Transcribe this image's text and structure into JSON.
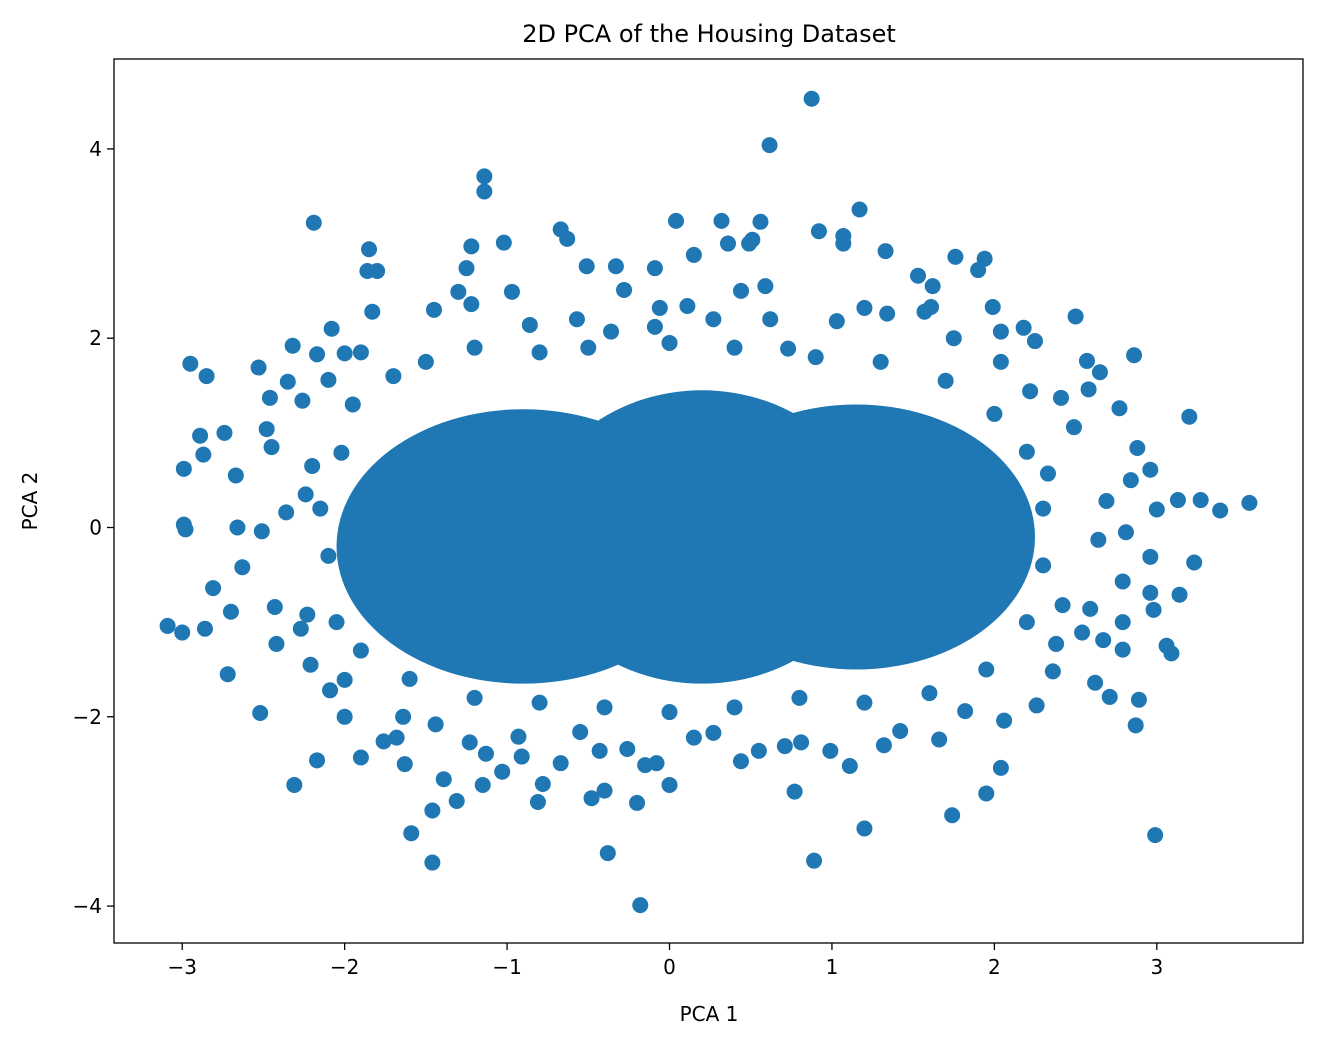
{
  "chart_data": {
    "type": "scatter",
    "title": "2D PCA of the Housing Dataset",
    "xlabel": "PCA 1",
    "ylabel": "PCA 2",
    "xlim": [
      -3.42,
      3.9
    ],
    "ylim": [
      -4.39,
      4.95
    ],
    "xticks": [
      -3,
      -2,
      -1,
      0,
      1,
      2,
      3
    ],
    "xtick_labels": [
      "−3",
      "−2",
      "−1",
      "0",
      "1",
      "2",
      "3"
    ],
    "yticks": [
      -4,
      -2,
      0,
      2,
      4
    ],
    "ytick_labels": [
      "−4",
      "−2",
      "0",
      "2",
      "4"
    ],
    "grid": false,
    "marker_color": "#1f77b4",
    "dense_core_regions": [
      {
        "cx": -0.9,
        "cy": -0.2,
        "rx": 1.15,
        "ry": 1.45
      },
      {
        "cx": 0.2,
        "cy": -0.1,
        "rx": 1.05,
        "ry": 1.55
      },
      {
        "cx": 1.15,
        "cy": -0.1,
        "rx": 1.1,
        "ry": 1.4
      }
    ],
    "points": [
      [
        0.875,
        4.53
      ],
      [
        0.616,
        4.04
      ],
      [
        -1.14,
        3.71
      ],
      [
        -1.14,
        3.55
      ],
      [
        -2.19,
        3.22
      ],
      [
        1.17,
        3.36
      ],
      [
        0.04,
        3.24
      ],
      [
        0.56,
        3.23
      ],
      [
        0.32,
        3.24
      ],
      [
        0.92,
        3.13
      ],
      [
        -0.67,
        3.15
      ],
      [
        -0.63,
        3.05
      ],
      [
        -1.02,
        3.01
      ],
      [
        -1.22,
        2.97
      ],
      [
        -1.85,
        2.94
      ],
      [
        1.33,
        2.92
      ],
      [
        1.07,
        3.08
      ],
      [
        1.07,
        3.0
      ],
      [
        0.36,
        3.0
      ],
      [
        0.49,
        3.0
      ],
      [
        0.51,
        3.04
      ],
      [
        1.76,
        2.86
      ],
      [
        1.94,
        2.84
      ],
      [
        1.9,
        2.72
      ],
      [
        -1.86,
        2.71
      ],
      [
        -1.8,
        2.71
      ],
      [
        -1.25,
        2.74
      ],
      [
        -0.09,
        2.74
      ],
      [
        0.15,
        2.88
      ],
      [
        -0.51,
        2.76
      ],
      [
        -0.33,
        2.76
      ],
      [
        1.53,
        2.66
      ],
      [
        1.62,
        2.55
      ],
      [
        0.59,
        2.55
      ],
      [
        2.5,
        2.23
      ],
      [
        2.86,
        1.82
      ],
      [
        3.2,
        1.17
      ],
      [
        -2.95,
        1.73
      ],
      [
        -2.85,
        1.6
      ],
      [
        -2.53,
        1.69
      ],
      [
        -2.89,
        0.97
      ],
      [
        -2.87,
        0.77
      ],
      [
        -2.74,
        1.0
      ],
      [
        -2.99,
        0.62
      ],
      [
        -2.99,
        0.03
      ],
      [
        -2.98,
        -0.02
      ],
      [
        -3.09,
        -1.04
      ],
      [
        -3.0,
        -1.11
      ],
      [
        -2.86,
        -1.07
      ],
      [
        -2.72,
        -1.55
      ],
      [
        -2.52,
        -1.96
      ],
      [
        -2.31,
        -2.72
      ],
      [
        -2.17,
        -2.46
      ],
      [
        -1.9,
        -2.43
      ],
      [
        -1.59,
        -3.23
      ],
      [
        -1.46,
        -3.54
      ],
      [
        -1.46,
        -2.99
      ],
      [
        -1.31,
        -2.89
      ],
      [
        -1.39,
        -2.66
      ],
      [
        -1.15,
        -2.72
      ],
      [
        -1.03,
        -2.58
      ],
      [
        -0.91,
        -2.42
      ],
      [
        -0.81,
        -2.9
      ],
      [
        -0.78,
        -2.71
      ],
      [
        -0.48,
        -2.86
      ],
      [
        -0.38,
        -3.44
      ],
      [
        -0.4,
        -2.78
      ],
      [
        -0.2,
        -2.91
      ],
      [
        -0.18,
        -3.99
      ],
      [
        0.0,
        -2.72
      ],
      [
        -0.15,
        -2.51
      ],
      [
        -0.08,
        -2.49
      ],
      [
        0.44,
        -2.47
      ],
      [
        0.55,
        -2.36
      ],
      [
        0.77,
        -2.79
      ],
      [
        0.89,
        -3.52
      ],
      [
        1.2,
        -3.18
      ],
      [
        1.74,
        -3.04
      ],
      [
        1.95,
        -2.81
      ],
      [
        2.04,
        -2.54
      ],
      [
        2.99,
        -3.25
      ],
      [
        2.87,
        -2.09
      ],
      [
        2.89,
        -1.82
      ],
      [
        3.06,
        -1.25
      ],
      [
        3.09,
        -1.33
      ],
      [
        3.14,
        -0.71
      ],
      [
        2.98,
        -0.87
      ],
      [
        2.96,
        -0.69
      ],
      [
        2.96,
        -0.31
      ],
      [
        3.0,
        0.19
      ],
      [
        3.13,
        0.29
      ],
      [
        3.27,
        0.29
      ],
      [
        3.39,
        0.18
      ],
      [
        3.57,
        0.26
      ],
      [
        3.23,
        -0.37
      ],
      [
        2.96,
        0.61
      ],
      [
        2.88,
        0.84
      ],
      [
        2.77,
        1.26
      ],
      [
        2.65,
        1.64
      ],
      [
        2.57,
        1.76
      ],
      [
        2.58,
        1.46
      ],
      [
        2.54,
        -1.11
      ],
      [
        2.67,
        -1.19
      ],
      [
        2.62,
        -1.64
      ],
      [
        2.71,
        -1.79
      ],
      [
        2.38,
        -1.23
      ],
      [
        2.36,
        -1.52
      ],
      [
        2.26,
        -1.88
      ],
      [
        2.79,
        -1.29
      ],
      [
        2.79,
        -1.0
      ],
      [
        2.59,
        -0.86
      ],
      [
        2.79,
        -0.57
      ],
      [
        2.81,
        -0.05
      ],
      [
        2.64,
        -0.13
      ],
      [
        2.84,
        0.5
      ],
      [
        2.69,
        0.28
      ],
      [
        -2.63,
        -0.42
      ],
      [
        -2.81,
        -0.64
      ],
      [
        -2.7,
        -0.89
      ],
      [
        -2.43,
        -0.84
      ],
      [
        -2.42,
        -1.23
      ],
      [
        -2.66,
        0.0
      ],
      [
        -2.67,
        0.55
      ],
      [
        -2.51,
        -0.04
      ],
      [
        -2.45,
        0.85
      ],
      [
        -2.46,
        1.37
      ],
      [
        -2.35,
        1.54
      ],
      [
        -2.32,
        1.92
      ],
      [
        -2.08,
        2.1
      ],
      [
        -2.26,
        1.34
      ],
      [
        -2.48,
        1.04
      ],
      [
        -2.36,
        0.16
      ],
      [
        -2.17,
        1.83
      ],
      [
        -2.1,
        1.56
      ],
      [
        -2.02,
        0.79
      ],
      [
        -2.24,
        0.35
      ],
      [
        -2.2,
        0.65
      ],
      [
        -2.23,
        -0.92
      ],
      [
        -2.27,
        -1.07
      ],
      [
        -2.21,
        -1.45
      ],
      [
        -2.0,
        -1.61
      ],
      [
        -2.09,
        -1.72
      ],
      [
        -2.0,
        -2.0
      ],
      [
        -1.76,
        -2.26
      ],
      [
        -1.63,
        -2.5
      ],
      [
        -1.68,
        -2.22
      ],
      [
        -1.64,
        -2.0
      ],
      [
        -1.44,
        -2.08
      ],
      [
        -1.23,
        -2.27
      ],
      [
        -1.13,
        -2.39
      ],
      [
        -0.93,
        -2.21
      ],
      [
        -0.67,
        -2.49
      ],
      [
        -0.55,
        -2.16
      ],
      [
        -0.43,
        -2.36
      ],
      [
        -0.26,
        -2.34
      ],
      [
        0.15,
        -2.22
      ],
      [
        0.27,
        -2.17
      ],
      [
        0.71,
        -2.31
      ],
      [
        0.81,
        -2.27
      ],
      [
        0.99,
        -2.36
      ],
      [
        1.11,
        -2.52
      ],
      [
        1.32,
        -2.3
      ],
      [
        1.42,
        -2.15
      ],
      [
        1.66,
        -2.24
      ],
      [
        1.82,
        -1.94
      ],
      [
        2.06,
        -2.04
      ],
      [
        2.42,
        -0.82
      ],
      [
        -2.0,
        1.84
      ],
      [
        -1.9,
        1.85
      ],
      [
        -1.83,
        2.28
      ],
      [
        -1.45,
        2.3
      ],
      [
        -1.3,
        2.49
      ],
      [
        -1.22,
        2.36
      ],
      [
        -0.97,
        2.49
      ],
      [
        -0.86,
        2.14
      ],
      [
        -0.57,
        2.2
      ],
      [
        -0.36,
        2.07
      ],
      [
        -0.28,
        2.51
      ],
      [
        -0.09,
        2.12
      ],
      [
        -0.06,
        2.32
      ],
      [
        0.11,
        2.34
      ],
      [
        0.27,
        2.2
      ],
      [
        0.44,
        2.5
      ],
      [
        0.62,
        2.2
      ],
      [
        0.73,
        1.89
      ],
      [
        1.03,
        2.18
      ],
      [
        1.2,
        2.32
      ],
      [
        1.34,
        2.26
      ],
      [
        1.57,
        2.28
      ],
      [
        1.61,
        2.33
      ],
      [
        1.75,
        2.0
      ],
      [
        1.99,
        2.33
      ],
      [
        2.18,
        2.11
      ],
      [
        2.25,
        1.97
      ],
      [
        2.04,
        1.75
      ],
      [
        2.22,
        1.44
      ],
      [
        2.41,
        1.37
      ],
      [
        2.33,
        0.57
      ],
      [
        2.49,
        1.06
      ],
      [
        2.04,
        2.07
      ],
      [
        -2.1,
        -0.3
      ],
      [
        -2.15,
        0.2
      ],
      [
        -2.05,
        -1.0
      ],
      [
        -1.95,
        1.3
      ],
      [
        -1.7,
        1.6
      ],
      [
        -1.5,
        1.75
      ],
      [
        -1.2,
        1.9
      ],
      [
        -0.8,
        1.85
      ],
      [
        -0.5,
        1.9
      ],
      [
        0.0,
        1.95
      ],
      [
        0.4,
        1.9
      ],
      [
        0.9,
        1.8
      ],
      [
        1.3,
        1.75
      ],
      [
        1.7,
        1.55
      ],
      [
        2.0,
        1.2
      ],
      [
        2.2,
        0.8
      ],
      [
        2.3,
        0.2
      ],
      [
        2.3,
        -0.4
      ],
      [
        2.2,
        -1.0
      ],
      [
        1.95,
        -1.5
      ],
      [
        1.6,
        -1.75
      ],
      [
        1.2,
        -1.85
      ],
      [
        0.8,
        -1.8
      ],
      [
        0.4,
        -1.9
      ],
      [
        0.0,
        -1.95
      ],
      [
        -0.4,
        -1.9
      ],
      [
        -0.8,
        -1.85
      ],
      [
        -1.2,
        -1.8
      ],
      [
        -1.6,
        -1.6
      ],
      [
        -1.9,
        -1.3
      ]
    ]
  }
}
